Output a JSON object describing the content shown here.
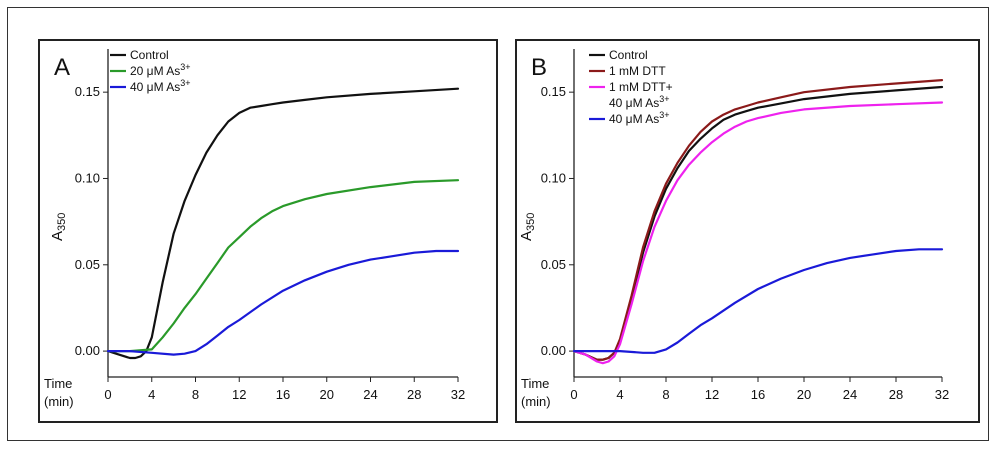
{
  "chart_data": [
    {
      "type": "line",
      "panel_label": "A",
      "xlabel": "Time",
      "xlabel_unit": "(min)",
      "ylabel": "A",
      "ylabel_sub": "350",
      "xlim": [
        0,
        32
      ],
      "ylim": [
        -0.015,
        0.175
      ],
      "xticks": [
        "0",
        "4",
        "8",
        "12",
        "16",
        "20",
        "24",
        "28",
        "32"
      ],
      "yticks": [
        "0.00",
        "0.05",
        "0.10",
        "0.15"
      ],
      "legend_position": "top-left",
      "series": [
        {
          "name": "Control",
          "name_sup": "",
          "name_line2": "",
          "name_line2_sup": "",
          "color": "#111111",
          "x": [
            0,
            1,
            2,
            2.5,
            3,
            3.5,
            4,
            5,
            6,
            7,
            8,
            9,
            10,
            11,
            12,
            13,
            14,
            15,
            16,
            18,
            20,
            24,
            28,
            32
          ],
          "y": [
            0.0,
            -0.002,
            -0.004,
            -0.004,
            -0.003,
            0.0,
            0.008,
            0.04,
            0.068,
            0.087,
            0.102,
            0.115,
            0.125,
            0.133,
            0.138,
            0.141,
            0.142,
            0.143,
            0.144,
            0.1455,
            0.147,
            0.149,
            0.1505,
            0.152
          ]
        },
        {
          "name": "20 μM As",
          "name_sup": "3+",
          "name_line2": "",
          "name_line2_sup": "",
          "color": "#2a9a2a",
          "x": [
            0,
            2,
            4,
            5,
            6,
            7,
            8,
            9,
            10,
            11,
            12,
            13,
            14,
            15,
            16,
            18,
            20,
            24,
            28,
            32
          ],
          "y": [
            0.0,
            0.0,
            0.001,
            0.008,
            0.016,
            0.025,
            0.033,
            0.042,
            0.051,
            0.06,
            0.066,
            0.072,
            0.077,
            0.081,
            0.084,
            0.088,
            0.091,
            0.095,
            0.098,
            0.099
          ]
        },
        {
          "name": "40 μM As",
          "name_sup": "3+",
          "name_line2": "",
          "name_line2_sup": "",
          "color": "#1a1ad8",
          "x": [
            0,
            2,
            4,
            6,
            7,
            8,
            9,
            10,
            11,
            12,
            14,
            16,
            18,
            20,
            22,
            24,
            26,
            28,
            30,
            32
          ],
          "y": [
            0.0,
            0.0,
            -0.001,
            -0.002,
            -0.0015,
            0.0,
            0.004,
            0.009,
            0.014,
            0.018,
            0.027,
            0.035,
            0.041,
            0.046,
            0.05,
            0.053,
            0.055,
            0.057,
            0.058,
            0.058
          ]
        }
      ]
    },
    {
      "type": "line",
      "panel_label": "B",
      "xlabel": "Time",
      "xlabel_unit": "(min)",
      "ylabel": "A",
      "ylabel_sub": "350",
      "xlim": [
        0,
        32
      ],
      "ylim": [
        -0.015,
        0.175
      ],
      "xticks": [
        "0",
        "4",
        "8",
        "12",
        "16",
        "20",
        "24",
        "28",
        "32"
      ],
      "yticks": [
        "0.00",
        "0.05",
        "0.10",
        "0.15"
      ],
      "legend_position": "top-left",
      "series": [
        {
          "name": "Control",
          "name_sup": "",
          "name_line2": "",
          "name_line2_sup": "",
          "color": "#111111",
          "x": [
            0,
            1,
            2,
            2.5,
            3,
            3.5,
            4,
            5,
            6,
            7,
            8,
            9,
            10,
            11,
            12,
            13,
            14,
            15,
            16,
            18,
            20,
            24,
            28,
            32
          ],
          "y": [
            0.0,
            -0.002,
            -0.005,
            -0.005,
            -0.004,
            -0.001,
            0.006,
            0.03,
            0.057,
            0.078,
            0.094,
            0.106,
            0.116,
            0.123,
            0.129,
            0.134,
            0.137,
            0.139,
            0.141,
            0.1435,
            0.146,
            0.149,
            0.151,
            0.153
          ]
        },
        {
          "name": "1 mM DTT",
          "name_sup": "",
          "name_line2": "",
          "name_line2_sup": "",
          "color": "#8b1a1a",
          "x": [
            0,
            1,
            2,
            2.5,
            3,
            3.5,
            4,
            5,
            6,
            7,
            8,
            9,
            10,
            11,
            12,
            13,
            14,
            15,
            16,
            18,
            20,
            24,
            28,
            32
          ],
          "y": [
            0.0,
            -0.002,
            -0.005,
            -0.005,
            -0.004,
            -0.001,
            0.007,
            0.032,
            0.06,
            0.081,
            0.097,
            0.109,
            0.119,
            0.127,
            0.133,
            0.137,
            0.14,
            0.142,
            0.144,
            0.147,
            0.15,
            0.153,
            0.155,
            0.157
          ]
        },
        {
          "name": "1 mM DTT+",
          "name_sup": "",
          "name_line2": "40 μM As",
          "name_line2_sup": "3+",
          "color": "#ee22ee",
          "x": [
            0,
            1,
            2,
            2.5,
            3,
            3.5,
            4,
            5,
            6,
            7,
            8,
            9,
            10,
            11,
            12,
            13,
            14,
            15,
            16,
            18,
            20,
            24,
            28,
            32
          ],
          "y": [
            0.0,
            -0.002,
            -0.006,
            -0.007,
            -0.006,
            -0.003,
            0.004,
            0.027,
            0.052,
            0.072,
            0.087,
            0.099,
            0.108,
            0.115,
            0.121,
            0.126,
            0.13,
            0.133,
            0.135,
            0.138,
            0.14,
            0.142,
            0.143,
            0.144
          ]
        },
        {
          "name": "40 μM As",
          "name_sup": "3+",
          "name_line2": "",
          "name_line2_sup": "",
          "color": "#1a1ad8",
          "x": [
            0,
            2,
            4,
            6,
            7,
            8,
            9,
            10,
            11,
            12,
            14,
            16,
            18,
            20,
            22,
            24,
            26,
            28,
            30,
            32
          ],
          "y": [
            0.0,
            0.0,
            0.0,
            -0.001,
            -0.001,
            0.001,
            0.005,
            0.01,
            0.015,
            0.019,
            0.028,
            0.036,
            0.042,
            0.047,
            0.051,
            0.054,
            0.056,
            0.058,
            0.059,
            0.059
          ]
        }
      ]
    }
  ]
}
